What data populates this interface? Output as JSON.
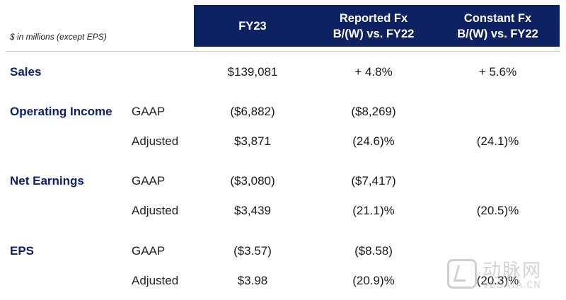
{
  "note": "$ in millions (except EPS)",
  "headers": {
    "fy23": "FY23",
    "reported": {
      "line1": "Reported Fx",
      "line2": "B/(W) vs. FY22"
    },
    "constant": {
      "line1": "Constant Fx",
      "line2": "B/(W) vs. FY22"
    }
  },
  "rows": [
    {
      "metric": "Sales",
      "basis": "",
      "fy23": "$139,081",
      "reported": "+ 4.8%",
      "constant": "+ 5.6%"
    },
    {
      "metric": "Operating Income",
      "basis": "GAAP",
      "fy23": "($6,882)",
      "reported": "($8,269)",
      "constant": ""
    },
    {
      "metric": "",
      "basis": "Adjusted",
      "fy23": "$3,871",
      "reported": "(24.6)%",
      "constant": "(24.1)%"
    },
    {
      "metric": "Net Earnings",
      "basis": "GAAP",
      "fy23": "($3,080)",
      "reported": "($7,417)",
      "constant": ""
    },
    {
      "metric": "",
      "basis": "Adjusted",
      "fy23": "$3,439",
      "reported": "(21.1)%",
      "constant": "(20.5)%"
    },
    {
      "metric": "EPS",
      "basis": "GAAP",
      "fy23": "($3.57)",
      "reported": "($8.58)",
      "constant": ""
    },
    {
      "metric": "",
      "basis": "Adjusted",
      "fy23": "$3.98",
      "reported": "(20.9)%",
      "constant": "(20.3)%"
    }
  ],
  "watermark": {
    "cn": "动脉网",
    "en": "VBDATA.CN"
  }
}
